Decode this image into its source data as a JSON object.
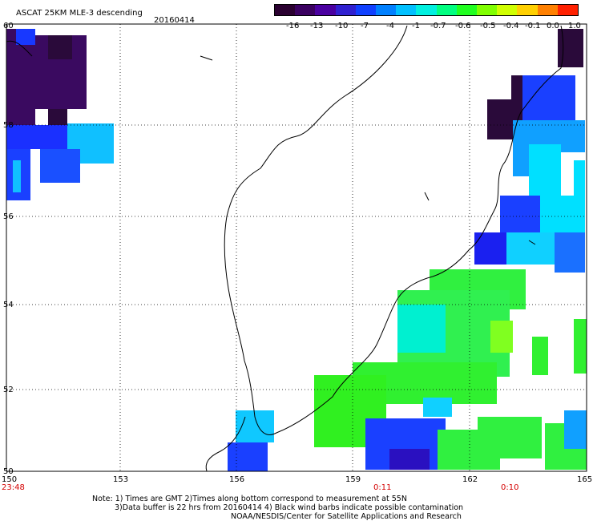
{
  "header": {
    "title": "ASCAT 25KM MLE-3 descending",
    "date": "20160414"
  },
  "colorbar": {
    "labels": [
      "-16",
      "-13",
      "-10",
      "-7",
      "-4",
      "-1",
      "-0.7",
      "-0.6",
      "-0.5",
      "-0.4",
      "-0.1",
      "0.0",
      "1.0"
    ],
    "colors": [
      "#2a0030",
      "#3a0060",
      "#4a00a0",
      "#3020d0",
      "#1040ff",
      "#0080ff",
      "#00c0ff",
      "#00f0e0",
      "#00ff80",
      "#20ff20",
      "#80ff00",
      "#d0ff00",
      "#ffd000",
      "#ff8000",
      "#ff2000"
    ]
  },
  "axes": {
    "x_ticks": [
      "150",
      "153",
      "156",
      "159",
      "162",
      "165"
    ],
    "y_ticks": [
      "60",
      "58",
      "56",
      "54",
      "52",
      "50"
    ]
  },
  "time_labels": [
    "23:48",
    "0:11",
    "0:10"
  ],
  "notes": [
    "Note: 1) Times are GMT 2)Times along bottom correspond to measurement at 55N",
    "3)Data buffer is 22 hrs from 20160414 4) Black wind barbs indicate possible contamination",
    "NOAA/NESDIS/Center for Satellite Applications and Research"
  ],
  "palette": {
    "dark_purple": "#2a0030",
    "purple": "#3a0a5a",
    "blue": "#1030ff",
    "light_blue": "#10c0ff",
    "cyan": "#00f0e8",
    "green": "#00ff40",
    "light_green": "#40ff60"
  }
}
